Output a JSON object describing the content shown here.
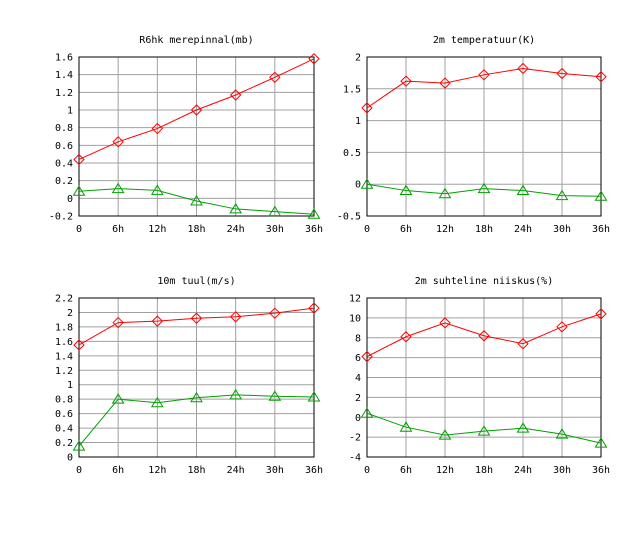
{
  "chart_data": [
    {
      "type": "line",
      "title": "R6hk merepinnal(mb)",
      "categories": [
        "0",
        "6h",
        "12h",
        "18h",
        "24h",
        "30h",
        "36h"
      ],
      "ylim": [
        -0.2,
        1.6
      ],
      "yticks": [
        "-0.2",
        "0",
        "0.2",
        "0.4",
        "0.6",
        "0.8",
        "1",
        "1.2",
        "1.4",
        "1.6"
      ],
      "grid": true,
      "series": [
        {
          "color": "#ff0000",
          "marker": "diamond",
          "values": [
            0.44,
            0.64,
            0.79,
            1.0,
            1.17,
            1.37,
            1.58
          ]
        },
        {
          "color": "#00a000",
          "marker": "triangle",
          "values": [
            0.08,
            0.11,
            0.09,
            -0.03,
            -0.12,
            -0.15,
            -0.18
          ]
        }
      ]
    },
    {
      "type": "line",
      "title": "2m temperatuur(K)",
      "categories": [
        "0",
        "6h",
        "12h",
        "18h",
        "24h",
        "30h",
        "36h"
      ],
      "ylim": [
        -0.5,
        2
      ],
      "yticks": [
        "-0.5",
        "0",
        "0.5",
        "1",
        "1.5",
        "2"
      ],
      "grid": true,
      "series": [
        {
          "color": "#ff0000",
          "marker": "diamond",
          "values": [
            1.2,
            1.62,
            1.59,
            1.72,
            1.82,
            1.74,
            1.69
          ]
        },
        {
          "color": "#00a000",
          "marker": "triangle",
          "values": [
            0.0,
            -0.1,
            -0.15,
            -0.07,
            -0.1,
            -0.18,
            -0.19
          ]
        }
      ]
    },
    {
      "type": "line",
      "title": "10m tuul(m/s)",
      "categories": [
        "0",
        "6h",
        "12h",
        "18h",
        "24h",
        "30h",
        "36h"
      ],
      "ylim": [
        0,
        2.2
      ],
      "yticks": [
        "0",
        "0.2",
        "0.4",
        "0.6",
        "0.8",
        "1",
        "1.2",
        "1.4",
        "1.6",
        "1.8",
        "2",
        "2.2"
      ],
      "grid": true,
      "series": [
        {
          "color": "#ff0000",
          "marker": "diamond",
          "values": [
            1.55,
            1.86,
            1.88,
            1.92,
            1.94,
            1.99,
            2.06
          ]
        },
        {
          "color": "#00a000",
          "marker": "triangle",
          "values": [
            0.15,
            0.8,
            0.75,
            0.82,
            0.86,
            0.84,
            0.83
          ]
        }
      ]
    },
    {
      "type": "line",
      "title": "2m suhteline niiskus(%)",
      "categories": [
        "0",
        "6h",
        "12h",
        "18h",
        "24h",
        "30h",
        "36h"
      ],
      "ylim": [
        -4,
        12
      ],
      "yticks": [
        "-4",
        "-2",
        "0",
        "2",
        "4",
        "6",
        "8",
        "10",
        "12"
      ],
      "grid": true,
      "series": [
        {
          "color": "#ff0000",
          "marker": "diamond",
          "values": [
            6.1,
            8.1,
            9.5,
            8.2,
            7.4,
            9.1,
            10.4
          ]
        },
        {
          "color": "#00a000",
          "marker": "triangle",
          "values": [
            0.4,
            -1.0,
            -1.8,
            -1.4,
            -1.1,
            -1.7,
            -2.6
          ]
        }
      ]
    }
  ]
}
